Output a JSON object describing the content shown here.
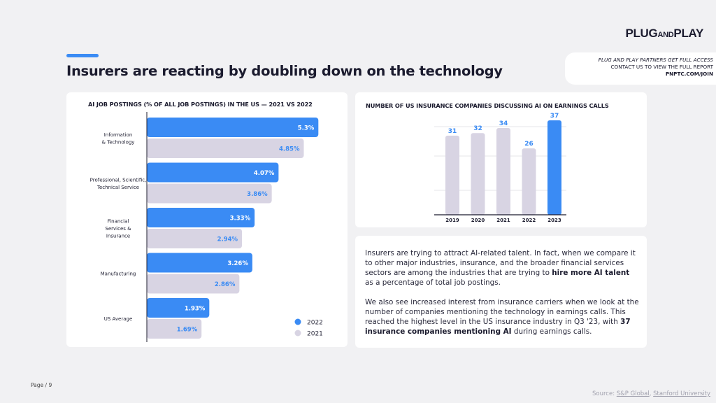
{
  "brand": {
    "logo_main": "PLUG",
    "logo_small": "AND",
    "logo_end": "PLAY"
  },
  "headline": "Insurers are reacting by doubling down on the technology",
  "cta": {
    "line1": "PLUG AND PLAY PARTNERS GET FULL ACCESS",
    "line2": "CONTACT US TO VIEW THE FULL REPORT",
    "line3": "PNPTC.COM/JOIN"
  },
  "colors": {
    "accent": "#3a8bf4",
    "series_2022": "#3a8bf4",
    "series_2021": "#d8d4e3"
  },
  "chart_data": [
    {
      "type": "bar",
      "orientation": "horizontal",
      "title": "AI JOB POSTINGS (% OF ALL JOB POSTINGS) IN THE US — 2021 VS 2022",
      "categories": [
        [
          "Information",
          "& Technology"
        ],
        [
          "Professional, Scientific,",
          "Technical Service"
        ],
        [
          "Financial",
          "Services &",
          "Insurance"
        ],
        [
          "Manufacturing"
        ],
        [
          "US Average"
        ]
      ],
      "series": [
        {
          "name": "2022",
          "values": [
            5.3,
            4.07,
            3.33,
            3.26,
            1.93
          ],
          "labels": [
            "5.3%",
            "4.07%",
            "3.33%",
            "3.26%",
            "1.93%"
          ]
        },
        {
          "name": "2021",
          "values": [
            4.85,
            3.86,
            2.94,
            2.86,
            1.69
          ],
          "labels": [
            "4.85%",
            "3.86%",
            "2.94%",
            "2.86%",
            "1.69%"
          ]
        }
      ],
      "xlim": [
        0,
        5.5
      ],
      "legend": [
        "2022",
        "2021"
      ],
      "legend_position": "bottom-right"
    },
    {
      "type": "bar",
      "title": "NUMBER OF US INSURANCE COMPANIES DISCUSSING AI ON EARNINGS CALLS",
      "categories": [
        "2019",
        "2020",
        "2021",
        "2022",
        "2023"
      ],
      "values": [
        31,
        32,
        34,
        26,
        37
      ],
      "highlight_index": 4,
      "ylim": [
        0,
        37
      ],
      "grid": true
    }
  ],
  "body": {
    "p1_before": "Insurers are trying to attract AI-related talent. In fact, when we compare it to other major industries, insurance, and the broader financial services sectors are among the industries that are trying to ",
    "p1_bold": "hire more AI talent",
    "p1_after": " as a percentage of total job postings.",
    "p2_before": "We also see increased interest from insurance carriers when we look at the number of companies mentioning the technology in earnings calls. This reached the highest level in the US insurance industry in Q3 '23, with ",
    "p2_bold": "37 insurance companies mentioning AI",
    "p2_after": " during earnings calls."
  },
  "footer": {
    "page": "Page / 9",
    "source_prefix": "Source: ",
    "source_1": "S&P Global",
    "source_sep": ", ",
    "source_2": "Stanford University"
  }
}
